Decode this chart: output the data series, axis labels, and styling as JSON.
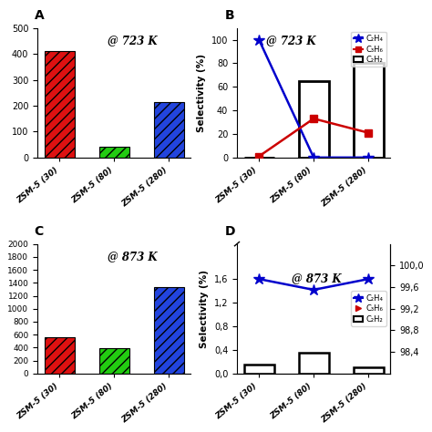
{
  "categories": [
    "ZSM-5 (30)",
    "ZSM-5 (80)",
    "ZSM-5 (280)"
  ],
  "A": {
    "label": "@ 723 K",
    "values": [
      410,
      40,
      215
    ],
    "colors": [
      "#dd1111",
      "#22cc11",
      "#2244dd"
    ],
    "ylim": [
      0,
      500
    ],
    "yticks": [
      0,
      100,
      200,
      300,
      400,
      500
    ]
  },
  "C": {
    "label": "@ 873 K",
    "values": [
      565,
      390,
      1340
    ],
    "colors": [
      "#dd1111",
      "#22cc11",
      "#2244dd"
    ],
    "ylim": [
      0,
      2000
    ],
    "yticks": [
      0,
      200,
      400,
      600,
      800,
      1000,
      1200,
      1400,
      1600,
      1800,
      2000
    ]
  },
  "B": {
    "label": "@ 723 K",
    "bar_values": [
      0,
      65,
      80
    ],
    "line1_values": [
      100,
      0,
      0
    ],
    "line2_values": [
      1,
      33,
      21
    ],
    "ylim": [
      0,
      110
    ],
    "yticks": [
      0,
      20,
      40,
      60,
      80,
      100
    ],
    "line1_color": "#0000cc",
    "line2_color": "#cc0000",
    "line1_marker": "*",
    "line2_marker": "s"
  },
  "D": {
    "label": "@ 873 K",
    "bar_values": [
      0.15,
      0.35,
      0.1
    ],
    "line1_values": [
      99.75,
      99.55,
      99.75
    ],
    "ylim_bar": [
      0,
      2.2
    ],
    "ylim_line": [
      98.0,
      100.4
    ],
    "yticks_left": [
      0.0,
      0.4,
      0.8,
      1.2,
      1.6
    ],
    "yticks_right": [
      98.4,
      98.8,
      99.2,
      99.6,
      100.0
    ],
    "yticklabels_left": [
      "0,0",
      "0,4",
      "0,8",
      "1,2",
      "1,6"
    ],
    "yticklabels_right": [
      "98,4",
      "98,8",
      "99,2",
      "99,6",
      "100,0"
    ],
    "line1_color": "#0000cc",
    "line1_marker": "*"
  },
  "hatch": "///",
  "bar_width": 0.55,
  "bg_color": "#ffffff",
  "legend_B": {
    "blue_label": "C₂H₄",
    "red_label": "C₃H₆",
    "bar_label": "C₂H₂"
  }
}
